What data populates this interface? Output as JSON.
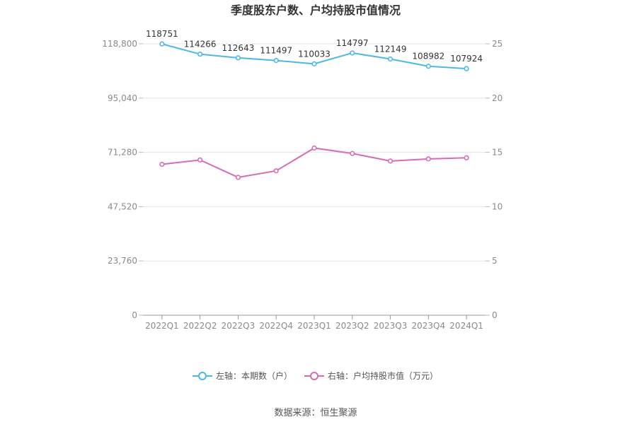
{
  "chart_data": {
    "type": "line",
    "title": "季度股东户数、户均持股市值情况",
    "categories": [
      "2022Q1",
      "2022Q2",
      "2022Q3",
      "2022Q4",
      "2023Q1",
      "2023Q2",
      "2023Q3",
      "2023Q4",
      "2024Q1"
    ],
    "left_axis": {
      "ticks": [
        "0",
        "23,760",
        "47,520",
        "71,280",
        "95,040",
        "118,800"
      ],
      "range": [
        0,
        118800
      ]
    },
    "right_axis": {
      "ticks": [
        "0",
        "5",
        "10",
        "15",
        "20",
        "25"
      ],
      "range": [
        0,
        25
      ]
    },
    "series": [
      {
        "name": "左轴：本期数（户）",
        "axis": "left",
        "color": "#4cb8e8",
        "values": [
          118751,
          114266,
          112643,
          111497,
          110033,
          114797,
          112149,
          108982,
          107924
        ],
        "labels": [
          "118751",
          "114266",
          "112643",
          "111497",
          "110033",
          "114797",
          "112149",
          "108982",
          "107924"
        ]
      },
      {
        "name": "右轴：户均持股市值（万元）",
        "axis": "right",
        "color": "#d86bb4",
        "values": [
          13.9,
          14.3,
          12.7,
          13.3,
          15.4,
          14.9,
          14.2,
          14.4,
          14.5
        ]
      }
    ],
    "grid": true,
    "legend_position": "bottom"
  },
  "source": "数据来源：恒生聚源"
}
